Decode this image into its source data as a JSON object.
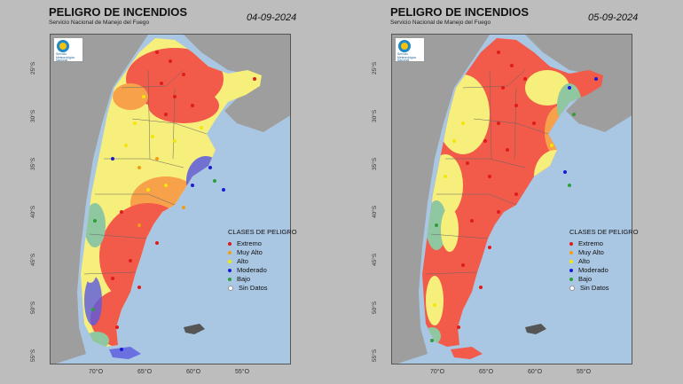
{
  "panels": [
    {
      "title": "PELIGRO DE INCENDIOS",
      "subtitle": "Servicio Nacional de Manejo del Fuego",
      "date": "04-09-2024",
      "logo_text": [
        "Servicio",
        "Meteorológico",
        "Nacional"
      ]
    },
    {
      "title": "PELIGRO DE INCENDIOS",
      "subtitle": "Servicio Nacional de Manejo del Fuego",
      "date": "05-09-2024",
      "logo_text": [
        "Servicio",
        "Meteorológico",
        "Nacional"
      ]
    }
  ],
  "legend": {
    "title": "CLASES DE PELIGRO",
    "classes": [
      {
        "label": "Extremo",
        "color": "#e01b1b"
      },
      {
        "label": "Muy Alto",
        "color": "#f39c12"
      },
      {
        "label": "Alto",
        "color": "#f5e60a"
      },
      {
        "label": "Moderado",
        "color": "#1a1ad6"
      },
      {
        "label": "Bajo",
        "color": "#2e9e3a"
      },
      {
        "label": "Sin Datos",
        "color": "#ffffff"
      }
    ]
  },
  "axes": {
    "lat_labels": [
      "25°S",
      "30°S",
      "35°S",
      "40°S",
      "45°S",
      "50°S",
      "55°S"
    ],
    "lon_labels": [
      "70°O",
      "65°O",
      "60°O",
      "55°O"
    ]
  },
  "colors": {
    "ocean": "#a9c6e2",
    "land_other": "#9e9e9e",
    "extreme": "#f25a4a",
    "very_high": "#f7a24a",
    "high": "#f7ef7c",
    "moderate": "#5a5ae0",
    "low": "#8fc8a0"
  }
}
